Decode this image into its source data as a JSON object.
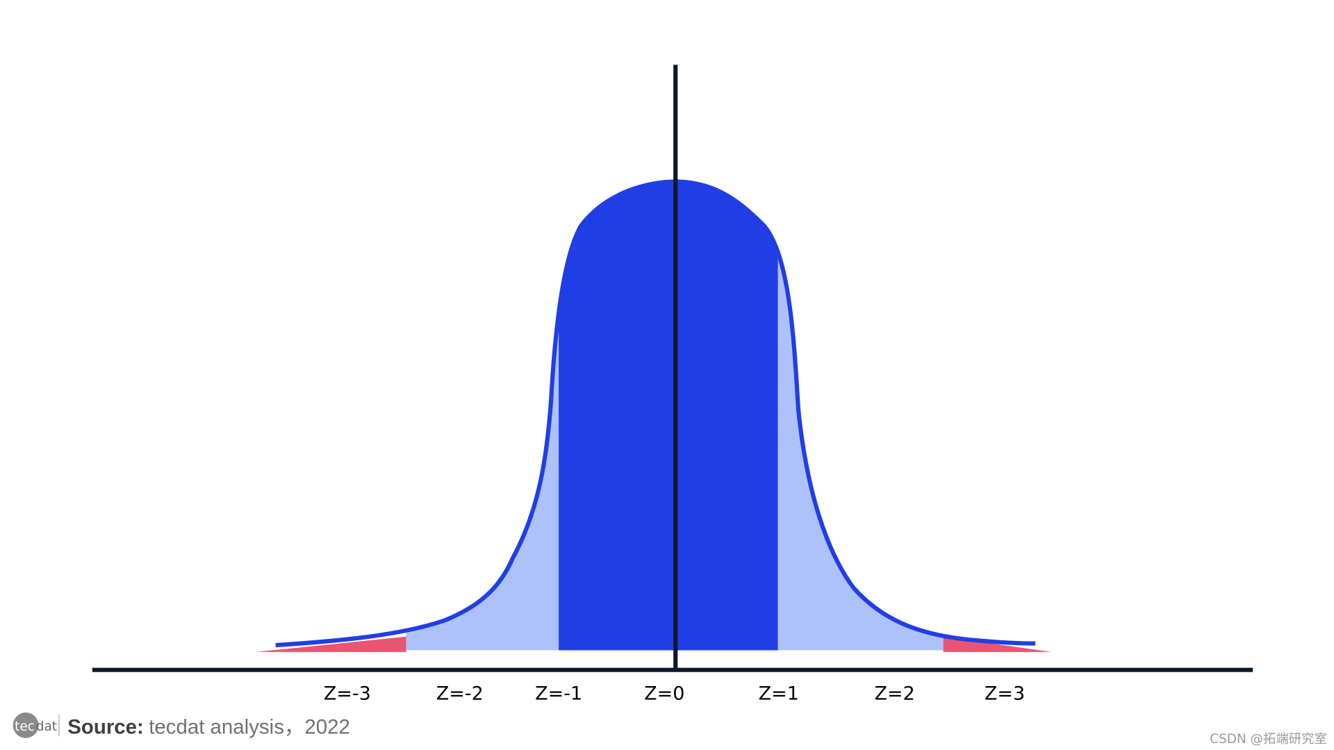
{
  "axis_labels": [
    "Z=-3",
    "Z=-2",
    "Z=-1",
    "Z=0",
    "Z=1",
    "Z=2",
    "Z=3"
  ],
  "logo": {
    "left": "tec",
    "right": "dat"
  },
  "source": {
    "label": "Source:",
    "text": "tecdat analysis，2022"
  },
  "watermark": "CSDN @拓端研究室"
}
